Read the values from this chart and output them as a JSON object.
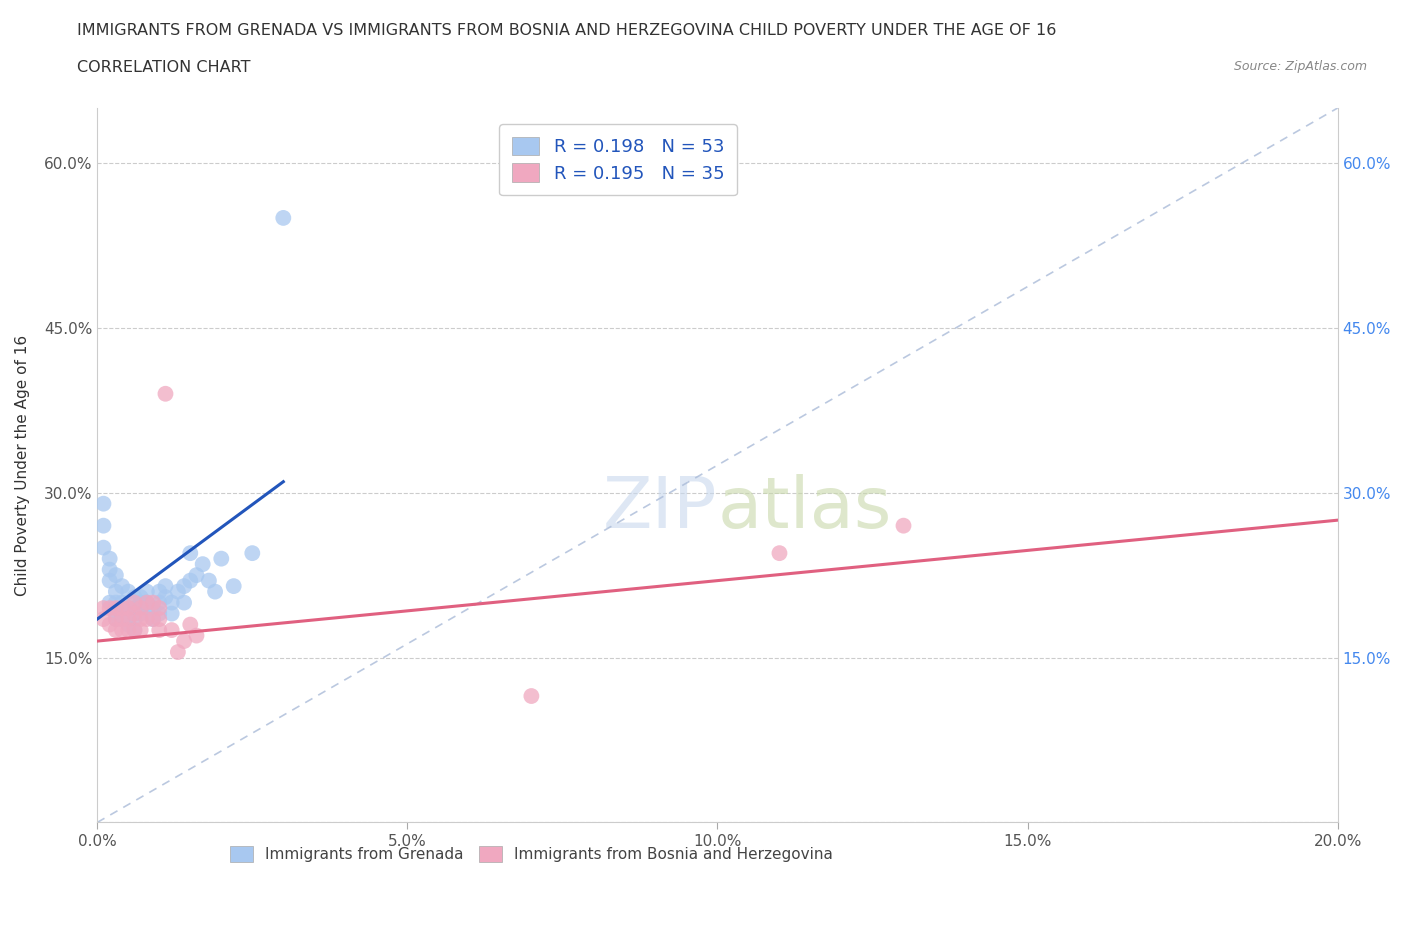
{
  "title_line1": "IMMIGRANTS FROM GRENADA VS IMMIGRANTS FROM BOSNIA AND HERZEGOVINA CHILD POVERTY UNDER THE AGE OF 16",
  "title_line2": "CORRELATION CHART",
  "source": "Source: ZipAtlas.com",
  "ylabel": "Child Poverty Under the Age of 16",
  "xlim": [
    0.0,
    0.2
  ],
  "ylim": [
    0.0,
    0.65
  ],
  "xticks": [
    0.0,
    0.05,
    0.1,
    0.15,
    0.2
  ],
  "yticks": [
    0.0,
    0.15,
    0.3,
    0.45,
    0.6
  ],
  "xtick_labels": [
    "0.0%",
    "5.0%",
    "10.0%",
    "15.0%",
    "20.0%"
  ],
  "ytick_labels": [
    "",
    "15.0%",
    "30.0%",
    "45.0%",
    "60.0%"
  ],
  "right_ytick_labels": [
    "15.0%",
    "30.0%",
    "45.0%",
    "60.0%"
  ],
  "color_grenada": "#a8c8f0",
  "color_bosnia": "#f0a8c0",
  "line_color_grenada": "#2255bb",
  "line_color_bosnia": "#e06080",
  "watermark_zip": "ZIP",
  "watermark_atlas": "atlas",
  "legend_R_grenada": "0.198",
  "legend_N_grenada": "53",
  "legend_R_bosnia": "0.195",
  "legend_N_bosnia": "35",
  "grenada_x": [
    0.001,
    0.001,
    0.001,
    0.002,
    0.002,
    0.002,
    0.002,
    0.003,
    0.003,
    0.003,
    0.003,
    0.003,
    0.004,
    0.004,
    0.004,
    0.004,
    0.005,
    0.005,
    0.005,
    0.005,
    0.005,
    0.006,
    0.006,
    0.006,
    0.006,
    0.007,
    0.007,
    0.007,
    0.008,
    0.008,
    0.008,
    0.009,
    0.009,
    0.01,
    0.01,
    0.01,
    0.011,
    0.011,
    0.012,
    0.012,
    0.013,
    0.014,
    0.014,
    0.015,
    0.015,
    0.016,
    0.017,
    0.018,
    0.019,
    0.02,
    0.022,
    0.025,
    0.03
  ],
  "grenada_y": [
    0.27,
    0.25,
    0.29,
    0.24,
    0.23,
    0.22,
    0.2,
    0.225,
    0.21,
    0.19,
    0.185,
    0.2,
    0.215,
    0.2,
    0.19,
    0.185,
    0.195,
    0.21,
    0.195,
    0.18,
    0.185,
    0.205,
    0.195,
    0.185,
    0.175,
    0.2,
    0.205,
    0.19,
    0.195,
    0.21,
    0.2,
    0.195,
    0.185,
    0.21,
    0.2,
    0.19,
    0.215,
    0.205,
    0.2,
    0.19,
    0.21,
    0.215,
    0.2,
    0.22,
    0.245,
    0.225,
    0.235,
    0.22,
    0.21,
    0.24,
    0.215,
    0.245,
    0.55
  ],
  "bosnia_x": [
    0.001,
    0.001,
    0.002,
    0.002,
    0.003,
    0.003,
    0.003,
    0.004,
    0.004,
    0.004,
    0.005,
    0.005,
    0.005,
    0.006,
    0.006,
    0.006,
    0.007,
    0.007,
    0.007,
    0.008,
    0.008,
    0.009,
    0.009,
    0.01,
    0.01,
    0.01,
    0.011,
    0.012,
    0.013,
    0.014,
    0.015,
    0.016,
    0.07,
    0.11,
    0.13
  ],
  "bosnia_y": [
    0.195,
    0.185,
    0.195,
    0.18,
    0.195,
    0.185,
    0.175,
    0.195,
    0.185,
    0.175,
    0.195,
    0.185,
    0.175,
    0.2,
    0.19,
    0.175,
    0.195,
    0.185,
    0.175,
    0.2,
    0.185,
    0.2,
    0.185,
    0.195,
    0.185,
    0.175,
    0.39,
    0.175,
    0.155,
    0.165,
    0.18,
    0.17,
    0.115,
    0.245,
    0.27
  ],
  "grenada_line_x": [
    0.0,
    0.03
  ],
  "grenada_line_y": [
    0.185,
    0.31
  ],
  "bosnia_line_x": [
    0.0,
    0.2
  ],
  "bosnia_line_y": [
    0.165,
    0.275
  ]
}
